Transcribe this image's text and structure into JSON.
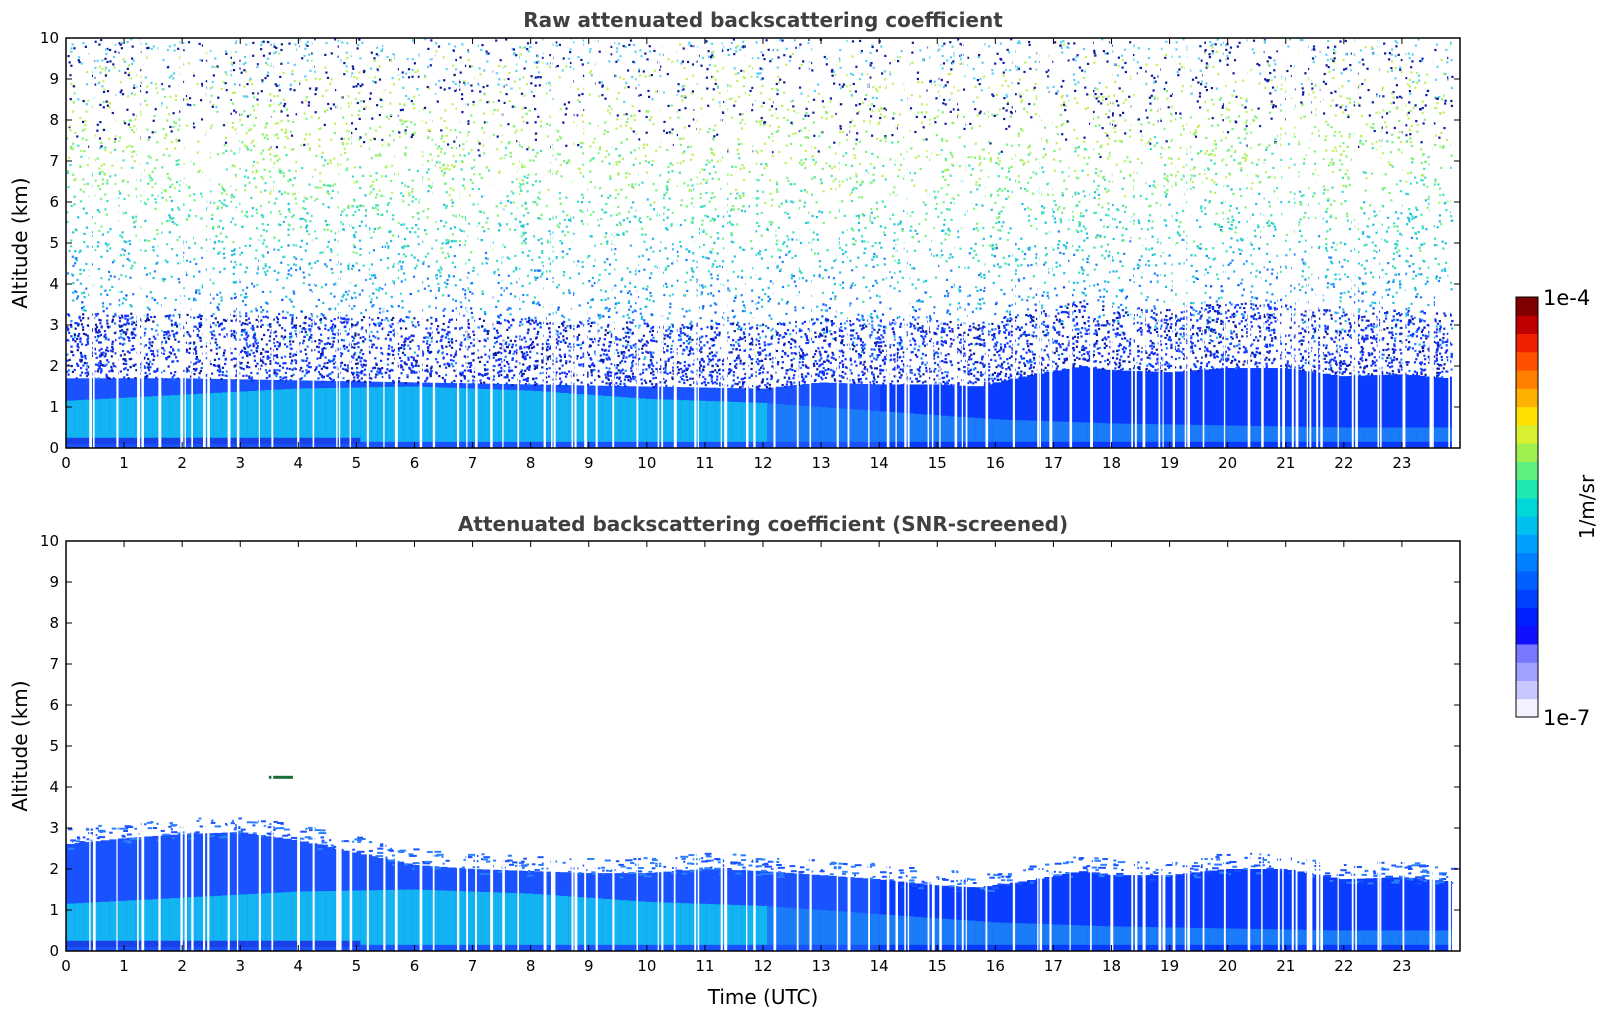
{
  "chart_data": [
    {
      "type": "heatmap",
      "title": "Raw attenuated backscattering coefficient",
      "xlabel": "",
      "ylabel": "Altitude (km)",
      "xlim": [
        0,
        24
      ],
      "ylim": [
        0,
        10
      ],
      "xticks": [
        "0",
        "1",
        "2",
        "3",
        "4",
        "5",
        "6",
        "7",
        "8",
        "9",
        "10",
        "11",
        "12",
        "13",
        "14",
        "15",
        "16",
        "17",
        "18",
        "19",
        "20",
        "21",
        "22",
        "23"
      ],
      "yticks": [
        "0",
        "1",
        "2",
        "3",
        "4",
        "5",
        "6",
        "7",
        "8",
        "9",
        "10"
      ],
      "data_end_hour": 23.85,
      "boundary_layer_top_km": {
        "x": [
          0,
          2,
          4,
          6,
          8,
          10,
          12,
          13,
          14,
          15,
          15.7,
          16.5,
          17.5,
          18,
          19,
          20,
          21,
          22,
          23,
          23.85
        ],
        "y": [
          1.7,
          1.7,
          1.65,
          1.6,
          1.55,
          1.5,
          1.45,
          1.6,
          1.55,
          1.55,
          1.5,
          1.75,
          2.0,
          1.9,
          1.85,
          1.95,
          1.95,
          1.75,
          1.8,
          1.7
        ]
      },
      "noise_fraction_top": 0.55,
      "grid": false
    },
    {
      "type": "heatmap",
      "title": "Attenuated backscattering coefficient (SNR-screened)",
      "xlabel": "Time (UTC)",
      "ylabel": "Altitude (km)",
      "xlim": [
        0,
        24
      ],
      "ylim": [
        0,
        10
      ],
      "xticks": [
        "0",
        "1",
        "2",
        "3",
        "4",
        "5",
        "6",
        "7",
        "8",
        "9",
        "10",
        "11",
        "12",
        "13",
        "14",
        "15",
        "16",
        "17",
        "18",
        "19",
        "20",
        "21",
        "22",
        "23"
      ],
      "yticks": [
        "0",
        "1",
        "2",
        "3",
        "4",
        "5",
        "6",
        "7",
        "8",
        "9",
        "10"
      ],
      "data_end_hour": 23.85,
      "signal_top_km": {
        "x": [
          0,
          1,
          2,
          3,
          4,
          5,
          6,
          7,
          8,
          9,
          10,
          11,
          12,
          13,
          14,
          15,
          15.7,
          16.5,
          17.5,
          18,
          19,
          20,
          21,
          22,
          23,
          23.85
        ],
        "y": [
          2.6,
          2.75,
          2.85,
          2.9,
          2.7,
          2.4,
          2.1,
          2.0,
          1.95,
          1.9,
          1.9,
          2.0,
          1.95,
          1.85,
          1.75,
          1.6,
          1.55,
          1.7,
          1.95,
          1.85,
          1.85,
          2.0,
          2.0,
          1.75,
          1.8,
          1.7
        ]
      },
      "aerosol_layer_km": {
        "x": [
          0,
          2,
          4,
          6,
          8,
          10,
          12,
          14,
          16,
          18,
          20,
          22,
          23.85
        ],
        "bottom": [
          0.05,
          0.05,
          0.05,
          0.05,
          0.05,
          0.05,
          0.05,
          0.05,
          0.05,
          0.05,
          0.05,
          0.05,
          0.05
        ],
        "top": [
          1.15,
          1.3,
          1.45,
          1.5,
          1.4,
          1.2,
          1.1,
          0.9,
          0.7,
          0.6,
          0.55,
          0.5,
          0.5
        ]
      },
      "isolated_feature": {
        "x": 3.7,
        "y": 4.25
      },
      "grid": false
    }
  ],
  "colorbar": {
    "label": "1/m/sr",
    "min_label": "1e-7",
    "max_label": "1e-4",
    "colors": [
      "#f2f2ff",
      "#c8c8ff",
      "#a0a0ff",
      "#7878ff",
      "#1010ff",
      "#0020ff",
      "#0040ff",
      "#0060ff",
      "#0080ff",
      "#00a0ff",
      "#00c0f0",
      "#00d8d8",
      "#20e8b0",
      "#60f080",
      "#a0f050",
      "#d8f030",
      "#ffe000",
      "#ffb000",
      "#ff8000",
      "#ff5000",
      "#f02000",
      "#c00000",
      "#800000"
    ]
  }
}
